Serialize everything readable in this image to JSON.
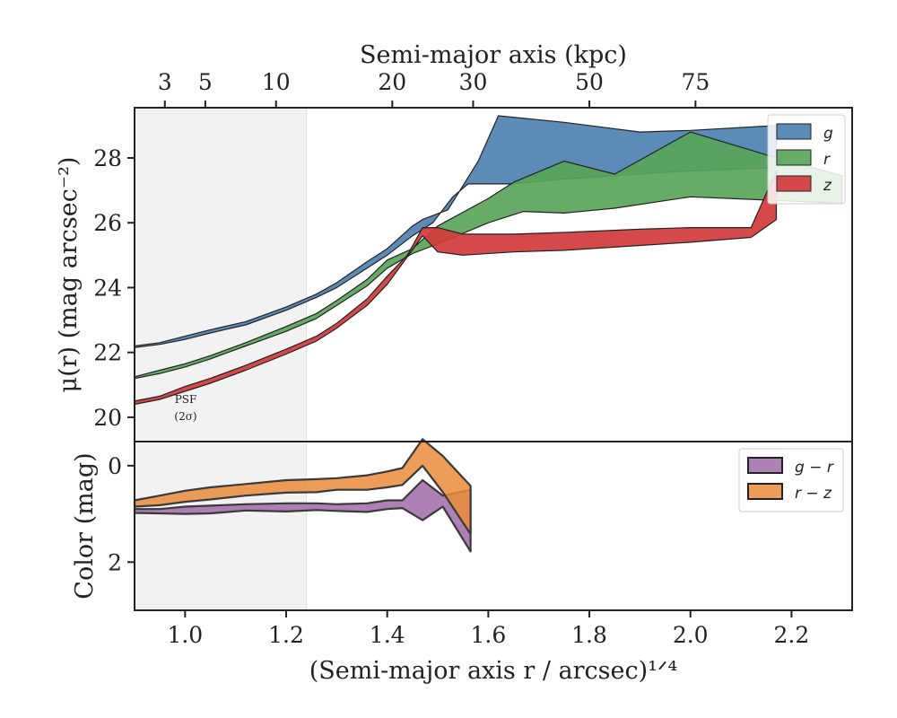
{
  "chart_data": [
    {
      "type": "area",
      "panel": "surface-brightness",
      "ylabel": "μ(r) (mag arcsec⁻²)",
      "top_xlabel": "Semi-major axis (kpc)",
      "top_ticks": [
        {
          "label": "3",
          "x": 0.96
        },
        {
          "label": "5",
          "x": 1.04
        },
        {
          "label": "10",
          "x": 1.18
        },
        {
          "label": "20",
          "x": 1.41
        },
        {
          "label": "30",
          "x": 1.57
        },
        {
          "label": "50",
          "x": 1.8
        },
        {
          "label": "75",
          "x": 2.01
        }
      ],
      "xlim": [
        0.9,
        2.32
      ],
      "ylim": [
        29.55,
        19.25
      ],
      "yticks": [
        20,
        22,
        24,
        26,
        28
      ],
      "psf_band": {
        "x_max": 1.24,
        "label_line1": "PSF",
        "label_line2": "(2σ)"
      },
      "legend_position": "top-right",
      "series": [
        {
          "name": "g",
          "color": "#4f81b2",
          "upper": [
            [
              0.9,
              22.15
            ],
            [
              0.95,
              22.25
            ],
            [
              1.0,
              22.4
            ],
            [
              1.05,
              22.6
            ],
            [
              1.12,
              22.85
            ],
            [
              1.2,
              23.3
            ],
            [
              1.26,
              23.7
            ],
            [
              1.3,
              24.0
            ],
            [
              1.36,
              24.6
            ],
            [
              1.4,
              25.0
            ],
            [
              1.45,
              25.6
            ],
            [
              1.49,
              26.0
            ],
            [
              1.53,
              26.8
            ],
            [
              1.56,
              27.2
            ],
            [
              1.65,
              27.2
            ],
            [
              1.75,
              27.35
            ],
            [
              1.85,
              27.45
            ],
            [
              2.0,
              27.6
            ],
            [
              2.17,
              27.7
            ]
          ],
          "lower": [
            [
              0.9,
              22.2
            ],
            [
              0.95,
              22.3
            ],
            [
              1.0,
              22.5
            ],
            [
              1.05,
              22.7
            ],
            [
              1.12,
              22.95
            ],
            [
              1.2,
              23.4
            ],
            [
              1.26,
              23.8
            ],
            [
              1.3,
              24.15
            ],
            [
              1.36,
              24.8
            ],
            [
              1.4,
              25.2
            ],
            [
              1.45,
              25.9
            ],
            [
              1.47,
              26.1
            ],
            [
              1.52,
              26.4
            ],
            [
              1.58,
              27.9
            ],
            [
              1.62,
              29.3
            ],
            [
              1.75,
              29.1
            ],
            [
              1.9,
              28.8
            ],
            [
              2.0,
              28.85
            ],
            [
              2.17,
              29.0
            ]
          ]
        },
        {
          "name": "r",
          "color": "#59a55a",
          "upper": [
            [
              0.9,
              21.2
            ],
            [
              0.95,
              21.35
            ],
            [
              1.0,
              21.55
            ],
            [
              1.05,
              21.8
            ],
            [
              1.12,
              22.2
            ],
            [
              1.2,
              22.65
            ],
            [
              1.26,
              23.05
            ],
            [
              1.3,
              23.45
            ],
            [
              1.36,
              24.05
            ],
            [
              1.4,
              24.6
            ],
            [
              1.45,
              25.05
            ],
            [
              1.5,
              25.35
            ],
            [
              1.6,
              26.0
            ],
            [
              1.67,
              26.35
            ],
            [
              1.75,
              26.3
            ],
            [
              1.85,
              26.45
            ],
            [
              2.0,
              26.8
            ],
            [
              2.15,
              26.7
            ],
            [
              2.3,
              26.6
            ]
          ],
          "lower": [
            [
              0.9,
              21.25
            ],
            [
              0.95,
              21.45
            ],
            [
              1.0,
              21.65
            ],
            [
              1.05,
              21.9
            ],
            [
              1.12,
              22.3
            ],
            [
              1.2,
              22.8
            ],
            [
              1.26,
              23.2
            ],
            [
              1.3,
              23.6
            ],
            [
              1.36,
              24.25
            ],
            [
              1.4,
              24.85
            ],
            [
              1.45,
              25.2
            ],
            [
              1.5,
              25.9
            ],
            [
              1.6,
              26.75
            ],
            [
              1.65,
              27.25
            ],
            [
              1.75,
              27.9
            ],
            [
              1.85,
              27.5
            ],
            [
              2.0,
              28.8
            ],
            [
              2.15,
              28.1
            ],
            [
              2.3,
              27.45
            ]
          ]
        },
        {
          "name": "z",
          "color": "#d23a3b",
          "upper": [
            [
              0.9,
              20.4
            ],
            [
              0.95,
              20.55
            ],
            [
              1.0,
              20.8
            ],
            [
              1.05,
              21.05
            ],
            [
              1.12,
              21.45
            ],
            [
              1.2,
              21.95
            ],
            [
              1.26,
              22.35
            ],
            [
              1.3,
              22.75
            ],
            [
              1.36,
              23.45
            ],
            [
              1.4,
              24.1
            ],
            [
              1.44,
              24.95
            ],
            [
              1.47,
              25.6
            ],
            [
              1.5,
              25.1
            ],
            [
              1.55,
              25.0
            ],
            [
              1.65,
              25.1
            ],
            [
              1.75,
              25.15
            ],
            [
              1.9,
              25.3
            ],
            [
              2.0,
              25.4
            ],
            [
              2.12,
              25.55
            ],
            [
              2.17,
              26.1
            ]
          ],
          "lower": [
            [
              0.9,
              20.5
            ],
            [
              0.95,
              20.65
            ],
            [
              1.0,
              20.95
            ],
            [
              1.05,
              21.2
            ],
            [
              1.12,
              21.6
            ],
            [
              1.2,
              22.1
            ],
            [
              1.26,
              22.5
            ],
            [
              1.3,
              22.9
            ],
            [
              1.36,
              23.65
            ],
            [
              1.4,
              24.35
            ],
            [
              1.44,
              25.0
            ],
            [
              1.47,
              25.85
            ],
            [
              1.5,
              25.85
            ],
            [
              1.55,
              25.65
            ],
            [
              1.65,
              25.65
            ],
            [
              1.75,
              25.7
            ],
            [
              1.9,
              25.8
            ],
            [
              2.0,
              25.85
            ],
            [
              2.12,
              25.85
            ],
            [
              2.17,
              27.6
            ]
          ]
        }
      ]
    },
    {
      "type": "area",
      "panel": "color",
      "ylabel": "Color (mag)",
      "xlabel": "(Semi-major axis r / arcsec)¹ᐟ⁴",
      "xlim": [
        0.9,
        2.32
      ],
      "ylim": [
        -0.5,
        3.0
      ],
      "xticks": [
        "1.0",
        "1.2",
        "1.4",
        "1.6",
        "1.8",
        "2.0",
        "2.2"
      ],
      "yticks": [
        0,
        2
      ],
      "legend_position": "top-right",
      "series": [
        {
          "name": "g − r",
          "color": "#a06aa8",
          "upper": [
            [
              0.9,
              0.98
            ],
            [
              0.95,
              0.99
            ],
            [
              1.0,
              1.0
            ],
            [
              1.05,
              0.99
            ],
            [
              1.12,
              0.93
            ],
            [
              1.2,
              0.95
            ],
            [
              1.26,
              0.92
            ],
            [
              1.3,
              0.94
            ],
            [
              1.36,
              0.96
            ],
            [
              1.4,
              0.9
            ],
            [
              1.43,
              0.88
            ],
            [
              1.47,
              1.13
            ],
            [
              1.51,
              0.85
            ],
            [
              1.565,
              1.78
            ]
          ],
          "lower": [
            [
              0.9,
              0.9
            ],
            [
              0.95,
              0.9
            ],
            [
              1.0,
              0.85
            ],
            [
              1.05,
              0.83
            ],
            [
              1.12,
              0.8
            ],
            [
              1.2,
              0.78
            ],
            [
              1.26,
              0.78
            ],
            [
              1.3,
              0.8
            ],
            [
              1.36,
              0.78
            ],
            [
              1.4,
              0.72
            ],
            [
              1.43,
              0.72
            ],
            [
              1.47,
              0.3
            ],
            [
              1.51,
              0.62
            ],
            [
              1.565,
              0.5
            ]
          ]
        },
        {
          "name": "r − z",
          "color": "#ea8c3a",
          "upper": [
            [
              0.9,
              0.85
            ],
            [
              0.95,
              0.82
            ],
            [
              1.0,
              0.75
            ],
            [
              1.05,
              0.7
            ],
            [
              1.12,
              0.62
            ],
            [
              1.2,
              0.56
            ],
            [
              1.26,
              0.55
            ],
            [
              1.3,
              0.5
            ],
            [
              1.36,
              0.5
            ],
            [
              1.4,
              0.45
            ],
            [
              1.43,
              0.4
            ],
            [
              1.47,
              0.0
            ],
            [
              1.51,
              0.55
            ],
            [
              1.565,
              1.42
            ]
          ],
          "lower": [
            [
              0.9,
              0.72
            ],
            [
              0.95,
              0.62
            ],
            [
              1.0,
              0.52
            ],
            [
              1.05,
              0.45
            ],
            [
              1.12,
              0.38
            ],
            [
              1.2,
              0.3
            ],
            [
              1.26,
              0.28
            ],
            [
              1.3,
              0.26
            ],
            [
              1.36,
              0.2
            ],
            [
              1.4,
              0.12
            ],
            [
              1.43,
              0.05
            ],
            [
              1.47,
              -0.55
            ],
            [
              1.51,
              -0.2
            ],
            [
              1.565,
              0.42
            ]
          ]
        }
      ]
    }
  ]
}
